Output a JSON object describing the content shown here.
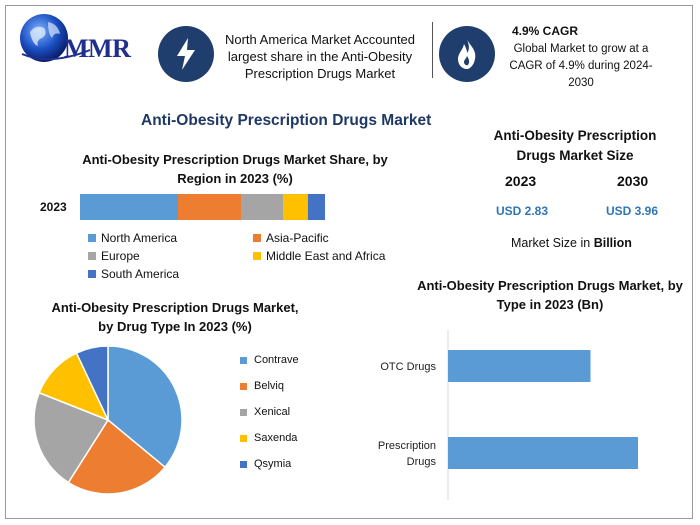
{
  "logo": {
    "text": "MMR"
  },
  "header": {
    "box1_icon": "lightning-icon",
    "box1_text": "North America Market Accounted largest share in the Anti-Obesity Prescription Drugs Market",
    "box2_icon": "flame-icon",
    "box2_title": "4.9% CAGR",
    "box2_text": "Global Market to grow at a CAGR of 4.9% during 2024-2030"
  },
  "main_title": "Anti-Obesity Prescription Drugs Market",
  "market_size": {
    "title": "Anti-Obesity Prescription Drugs Market Size",
    "year1": "2023",
    "year2": "2030",
    "value1": "USD 2.83",
    "value2": "USD 3.96",
    "unit_label": "Market Size in",
    "unit_bold": "Billion"
  },
  "colors": {
    "blue": "#5b9bd5",
    "orange": "#ed7d31",
    "gray": "#a5a5a5",
    "yellow": "#ffc000",
    "darkblue": "#4472c4",
    "navy": "#1f3e6e"
  },
  "chart_data": [
    {
      "type": "bar",
      "orientation": "horizontal-stacked",
      "title": "Anti-Obesity Prescription Drugs Market Share, by Region in 2023 (%)",
      "categories": [
        "2023"
      ],
      "series": [
        {
          "name": "North America",
          "values": [
            40
          ],
          "color": "#5b9bd5"
        },
        {
          "name": "Asia-Pacific",
          "values": [
            26
          ],
          "color": "#ed7d31"
        },
        {
          "name": "Europe",
          "values": [
            17
          ],
          "color": "#a5a5a5"
        },
        {
          "name": "Middle East and Africa",
          "values": [
            10
          ],
          "color": "#ffc000"
        },
        {
          "name": "South America",
          "values": [
            7
          ],
          "color": "#4472c4"
        }
      ]
    },
    {
      "type": "pie",
      "title": "Anti-Obesity Prescription Drugs Market, by Drug Type In 2023 (%)",
      "categories": [
        "Contrave",
        "Belviq",
        "Xenical",
        "Saxenda",
        "Qsymia"
      ],
      "values": [
        36,
        23,
        22,
        12,
        7
      ],
      "colors": [
        "#5b9bd5",
        "#ed7d31",
        "#a5a5a5",
        "#ffc000",
        "#4472c4"
      ]
    },
    {
      "type": "bar",
      "orientation": "horizontal",
      "title": "Anti-Obesity Prescription Drugs Market, by Type in 2023 (Bn)",
      "categories": [
        "OTC Drugs",
        "Prescription Drugs"
      ],
      "values": [
        1.2,
        1.6
      ],
      "color": "#5b9bd5"
    }
  ]
}
